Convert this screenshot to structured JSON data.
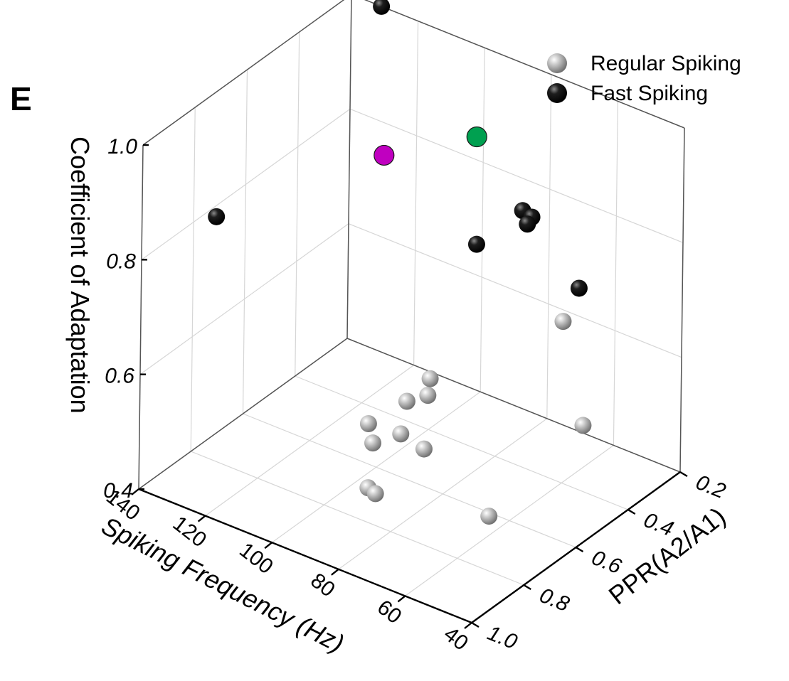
{
  "panel_label": "E",
  "chart_data": {
    "type": "scatter",
    "xlabel": "Spiking Frequency (Hz)",
    "ylabel": "PPR(A2/A1)",
    "zlabel": "Coefficient of Adaptation",
    "xlim": [
      40,
      140
    ],
    "ylim": [
      0.2,
      1.0
    ],
    "zlim": [
      0.4,
      1.0
    ],
    "x_ticks": [
      "40",
      "60",
      "80",
      "100",
      "120",
      "140"
    ],
    "y_ticks": [
      "0.2",
      "0.4",
      "0.6",
      "0.8",
      "1.0"
    ],
    "z_ticks": [
      "0.4",
      "0.6",
      "0.8",
      "1.0"
    ],
    "legend_position": "top-right",
    "grid": true,
    "series": [
      {
        "name": "Regular Spiking",
        "color": "#aaaaaa",
        "points": [
          {
            "x": 74,
            "y": 0.22,
            "z": 0.59
          },
          {
            "x": 53,
            "y": 0.41,
            "z": 0.52
          },
          {
            "x": 95,
            "y": 0.46,
            "z": 0.52
          },
          {
            "x": 91,
            "y": 0.52,
            "z": 0.52
          },
          {
            "x": 98,
            "y": 0.51,
            "z": 0.49
          },
          {
            "x": 92,
            "y": 0.61,
            "z": 0.48
          },
          {
            "x": 85,
            "y": 0.61,
            "z": 0.47
          },
          {
            "x": 104,
            "y": 0.58,
            "z": 0.46
          },
          {
            "x": 98,
            "y": 0.64,
            "z": 0.46
          },
          {
            "x": 90,
            "y": 0.76,
            "z": 0.44
          },
          {
            "x": 87,
            "y": 0.77,
            "z": 0.44
          },
          {
            "x": 53,
            "y": 0.77,
            "z": 0.48
          }
        ]
      },
      {
        "name": "Fast Spiking",
        "color": "#000000",
        "points": [
          {
            "x": 131,
            "y": 0.2,
            "z": 1.0
          },
          {
            "x": 134,
            "y": 0.79,
            "z": 0.82
          },
          {
            "x": 78,
            "y": 0.33,
            "z": 0.81
          },
          {
            "x": 76,
            "y": 0.32,
            "z": 0.8
          },
          {
            "x": 75,
            "y": 0.35,
            "z": 0.8
          },
          {
            "x": 87,
            "y": 0.39,
            "z": 0.75
          },
          {
            "x": 57,
            "y": 0.38,
            "z": 0.74
          }
        ]
      },
      {
        "color": "#00a050",
        "points": [
          {
            "x": 102,
            "y": 0.2,
            "z": 0.84
          }
        ]
      },
      {
        "color": "#c000c0",
        "points": [
          {
            "x": 115,
            "y": 0.39,
            "z": 0.84
          }
        ]
      }
    ]
  }
}
